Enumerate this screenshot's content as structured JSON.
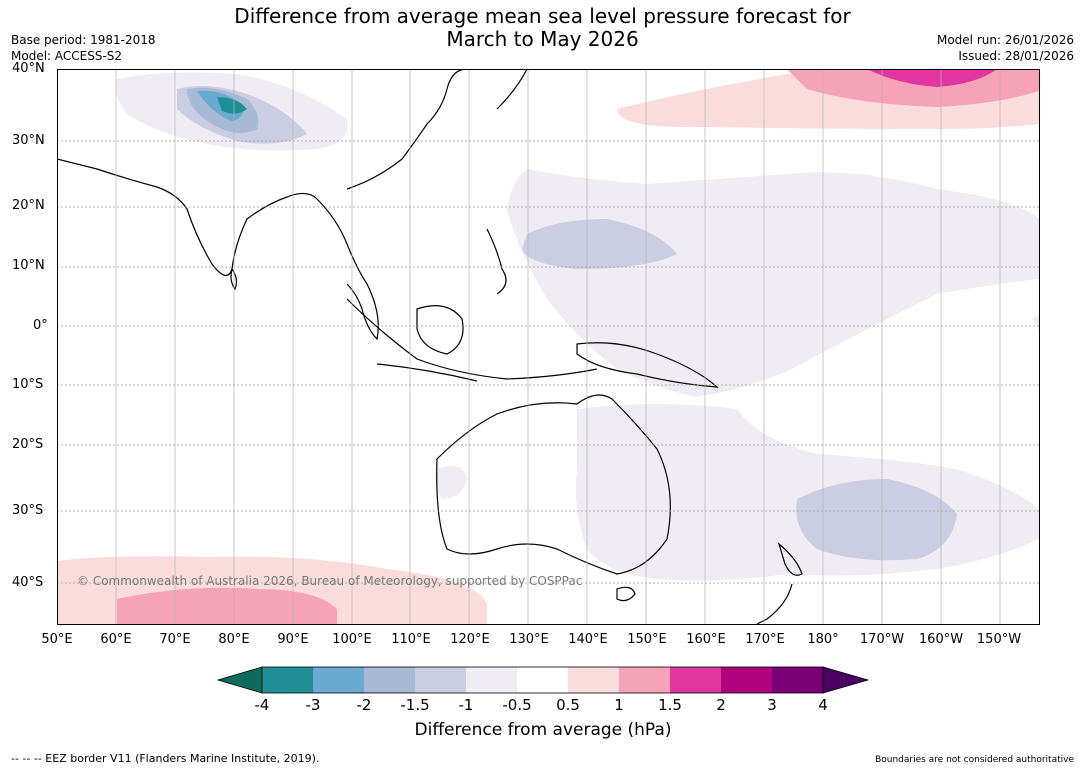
{
  "title_line1": "Difference from average mean sea level pressure forecast for",
  "title_line2": "March to May 2026",
  "base_period": "Base period: 1981-2018",
  "model": "Model: ACCESS-S2",
  "model_run": "Model run: 26/01/2026",
  "issued": "Issued: 28/01/2026",
  "copyright": "© Commonwealth of Australia 2026, Bureau of Meteorology, supported by COSPPac",
  "lat_labels": [
    "40°N",
    "30°N",
    "20°N",
    "10°N",
    "0°",
    "10°S",
    "20°S",
    "30°S",
    "40°S"
  ],
  "lon_labels": [
    "50°E",
    "60°E",
    "70°E",
    "80°E",
    "90°E",
    "100°E",
    "110°E",
    "120°E",
    "130°E",
    "140°E",
    "150°E",
    "160°E",
    "170°E",
    "180°",
    "170°W",
    "160°W",
    "150°W"
  ],
  "colorbar": {
    "title": "Difference from average (hPa)",
    "tick_labels": [
      "-4",
      "-3",
      "-2",
      "-1.5",
      "-1",
      "-0.5",
      "0.5",
      "1",
      "1.5",
      "2",
      "3",
      "4"
    ],
    "colors": [
      "#0f6b5e",
      "#1f8f96",
      "#6aaad0",
      "#a8b9d6",
      "#cbcde2",
      "#f0ecf3",
      "#ffffff",
      "#fbdcdc",
      "#f6a2b8",
      "#e036a0",
      "#b0047e",
      "#7a0078",
      "#4b0066"
    ]
  },
  "footer_left": "--  --  -- EEZ border V11 (Flanders Marine Institute, 2019).",
  "footer_right": "Boundaries are not considered authoritative"
}
